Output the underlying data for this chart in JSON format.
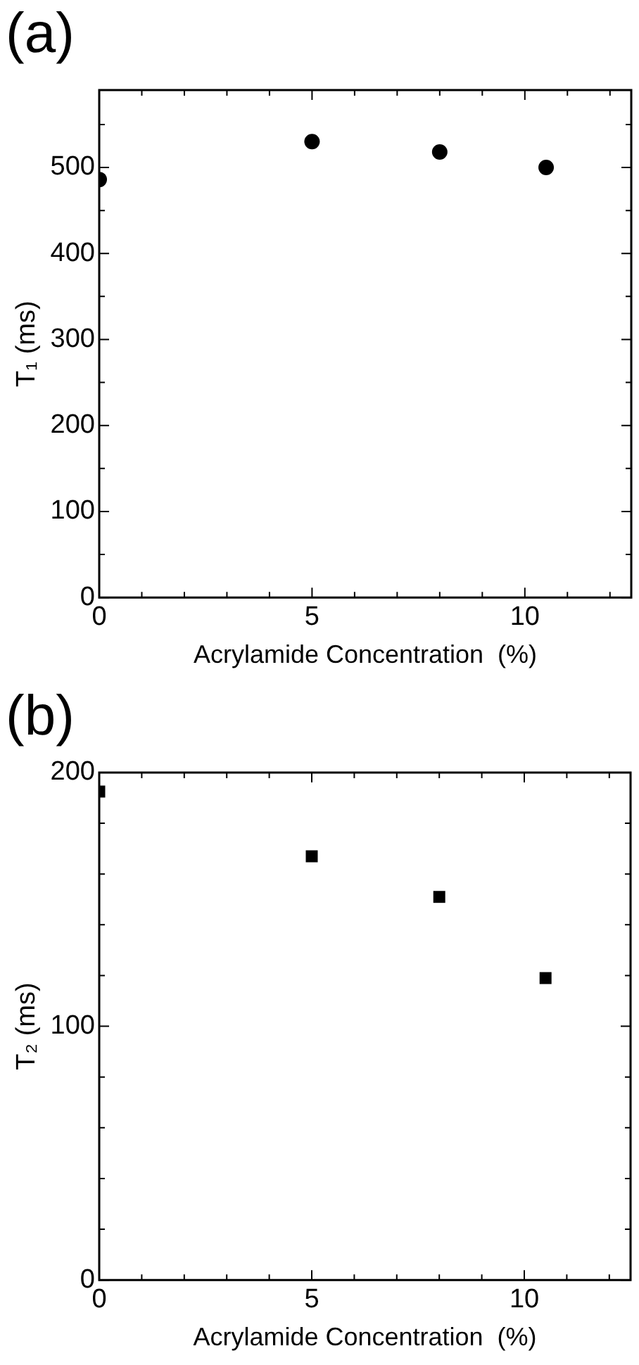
{
  "chart_data": [
    {
      "type": "scatter",
      "title": "(a)",
      "xlabel": "Acrylamide Concentration  (%)",
      "ylabel": "T₁ (ms)",
      "marker": "circle",
      "grid": false,
      "legend": false,
      "x": [
        0,
        5,
        8,
        10.5
      ],
      "values": [
        486,
        530,
        518,
        500
      ],
      "color": "#000000",
      "xlim": [
        0,
        12.5
      ],
      "xticks": [
        0,
        {
          "value": 1,
          "label": null
        },
        {
          "value": 2,
          "label": null
        },
        {
          "value": 3,
          "label": null
        },
        {
          "value": 4,
          "label": null
        },
        5,
        {
          "value": 6,
          "label": null
        },
        {
          "value": 7,
          "label": null
        },
        {
          "value": 8,
          "label": null
        },
        {
          "value": 9,
          "label": null
        },
        10,
        {
          "value": 11,
          "label": null
        },
        {
          "value": 12,
          "label": null
        }
      ],
      "ylim": [
        0,
        590
      ],
      "yticks": [
        0,
        {
          "value": 50,
          "label": null
        },
        100,
        {
          "value": 150,
          "label": null
        },
        200,
        {
          "value": 250,
          "label": null
        },
        300,
        {
          "value": 350,
          "label": null
        },
        400,
        {
          "value": 450,
          "label": null
        },
        500,
        {
          "value": 550,
          "label": null
        }
      ]
    },
    {
      "type": "scatter",
      "title": "(b)",
      "xlabel": "Acrylamide Concentration  (%)",
      "ylabel": "T₂ (ms)",
      "marker": "square",
      "grid": false,
      "legend": false,
      "x": [
        0,
        5,
        8,
        10.5
      ],
      "values": [
        192.5,
        167,
        151,
        119
      ],
      "color": "#000000",
      "xlim": [
        0,
        12.5
      ],
      "xticks": [
        0,
        {
          "value": 1,
          "label": null
        },
        {
          "value": 2,
          "label": null
        },
        {
          "value": 3,
          "label": null
        },
        {
          "value": 4,
          "label": null
        },
        5,
        {
          "value": 6,
          "label": null
        },
        {
          "value": 7,
          "label": null
        },
        {
          "value": 8,
          "label": null
        },
        {
          "value": 9,
          "label": null
        },
        10,
        {
          "value": 11,
          "label": null
        },
        {
          "value": 12,
          "label": null
        }
      ],
      "ylim": [
        0,
        200
      ],
      "yticks": [
        0,
        {
          "value": 20,
          "label": null
        },
        {
          "value": 40,
          "label": null
        },
        {
          "value": 60,
          "label": null
        },
        {
          "value": 80,
          "label": null
        },
        100,
        {
          "value": 120,
          "label": null
        },
        {
          "value": 140,
          "label": null
        },
        {
          "value": 160,
          "label": null
        },
        {
          "value": 180,
          "label": null
        },
        200
      ]
    }
  ]
}
